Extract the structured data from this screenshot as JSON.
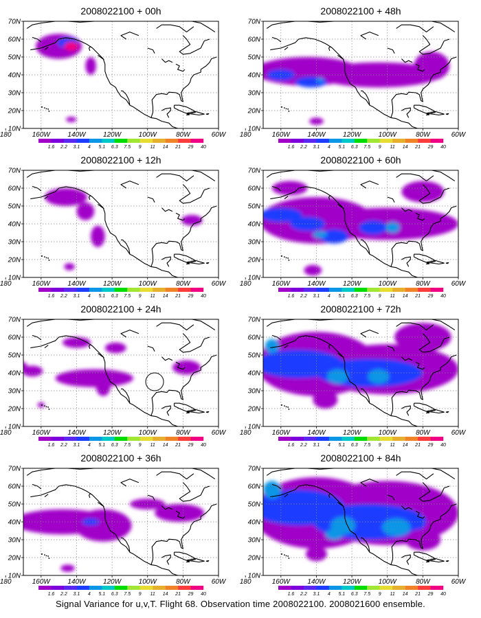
{
  "panels": [
    {
      "title": "2008022100 + 00h",
      "lead": 0
    },
    {
      "title": "2008022100 + 48h",
      "lead": 48
    },
    {
      "title": "2008022100 + 12h",
      "lead": 12
    },
    {
      "title": "2008022100 + 60h",
      "lead": 60
    },
    {
      "title": "2008022100 + 24h",
      "lead": 24
    },
    {
      "title": "2008022100 + 72h",
      "lead": 72
    },
    {
      "title": "2008022100 + 36h",
      "lead": 36
    },
    {
      "title": "2008022100 + 84h",
      "lead": 84
    }
  ],
  "map": {
    "lon_range": [
      170,
      60
    ],
    "lat_range": [
      10,
      70
    ],
    "lon_ticks": [
      {
        "lon": 180,
        "label": "180"
      },
      {
        "lon": 160,
        "label": "160W"
      },
      {
        "lon": 140,
        "label": "140W"
      },
      {
        "lon": 120,
        "label": "120W"
      },
      {
        "lon": 100,
        "label": "100W"
      },
      {
        "lon": 80,
        "label": "80W"
      },
      {
        "lon": 60,
        "label": "60W"
      }
    ],
    "lat_ticks": [
      {
        "lat": 10,
        "label": "10N"
      },
      {
        "lat": 20,
        "label": "20N"
      },
      {
        "lat": 30,
        "label": "30N"
      },
      {
        "lat": 40,
        "label": "40N"
      },
      {
        "lat": 50,
        "label": "50N"
      },
      {
        "lat": 60,
        "label": "60N"
      },
      {
        "lat": 70,
        "label": "70N"
      }
    ],
    "grid": "dotted"
  },
  "colorbar": {
    "labels": [
      "1.6",
      "2.2",
      "3.1",
      "4",
      "5.1",
      "6.3",
      "7.5",
      "9",
      "11",
      "14",
      "21",
      "29",
      "40"
    ],
    "colors": [
      "#a000c8",
      "#7d00dc",
      "#5a28f0",
      "#1e3cff",
      "#0c96e6",
      "#00c8c8",
      "#00dc00",
      "#a0e632",
      "#e6dc32",
      "#e6af2d",
      "#f08228",
      "#fa3c3c",
      "#f00082"
    ]
  },
  "caption": "Signal Variance for u,v,T. Flight 68. Observation time 2008022100. 2008021600 ensemble."
}
